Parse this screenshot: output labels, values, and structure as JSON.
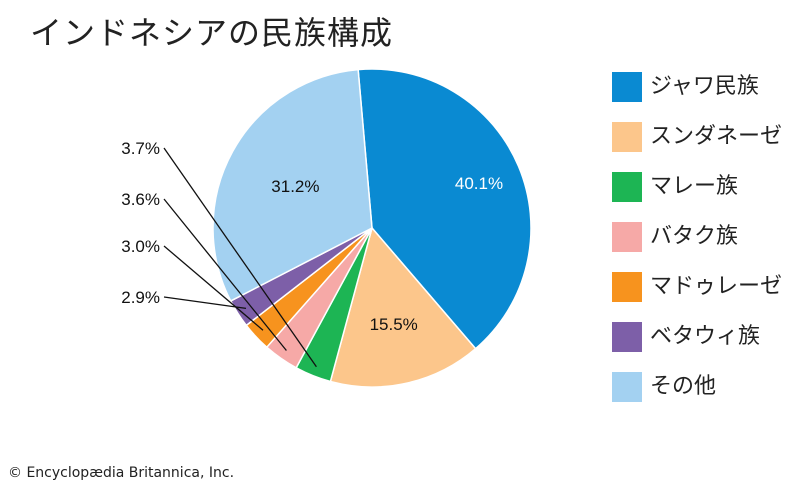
{
  "chart_data": {
    "type": "pie",
    "title": "インドネシアの民族構成",
    "categories": [
      "ジャワ民族",
      "スンダネーゼ",
      "マレー族",
      "バタク族",
      "マドゥレーゼ",
      "ベタウィ族",
      "その他"
    ],
    "values": [
      40.1,
      15.5,
      3.7,
      3.6,
      3.0,
      2.9,
      31.2
    ],
    "labels": [
      "40.1%",
      "15.5%",
      "3.7%",
      "3.6%",
      "3.0%",
      "2.9%",
      "31.2%"
    ],
    "colors": [
      "#0a8ad2",
      "#fcc68b",
      "#1db554",
      "#f6a9a7",
      "#f7931e",
      "#7d5fa8",
      "#a3d1f1"
    ],
    "label_colors": [
      "#ffffff",
      "#111111",
      "#111111",
      "#111111",
      "#111111",
      "#111111",
      "#111111"
    ],
    "label_placement": [
      "inside",
      "inside",
      "outside-left",
      "outside-left",
      "outside-left",
      "outside-left",
      "inside"
    ],
    "legend_position": "right"
  },
  "copyright": "© Encyclopædia Britannica, Inc."
}
